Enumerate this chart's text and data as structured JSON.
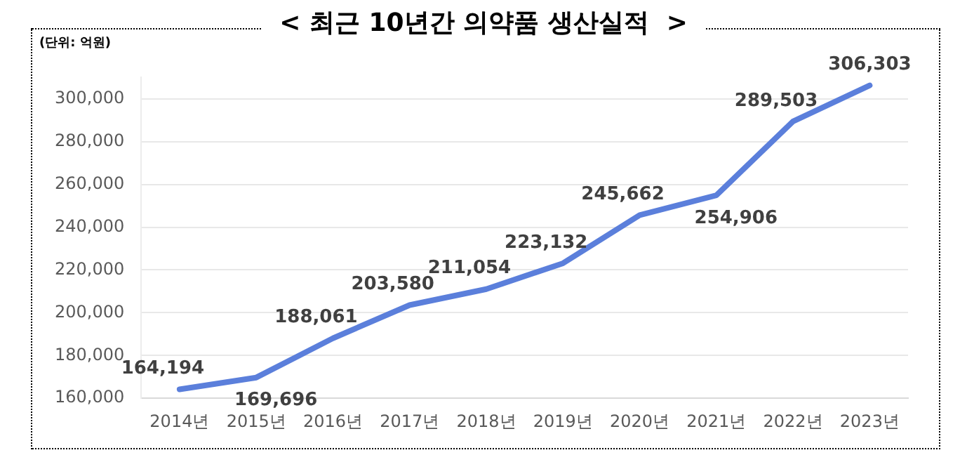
{
  "chart_data": {
    "type": "line",
    "title": "< 최근 10년간 의약품 생산실적  >",
    "annotations": [
      "(단위: 억원)"
    ],
    "categories": [
      "2014년",
      "2015년",
      "2016년",
      "2017년",
      "2018년",
      "2019년",
      "2020년",
      "2021년",
      "2022년",
      "2023년"
    ],
    "series": [
      {
        "color": "#5b7fdb",
        "values": [
          164194,
          169696,
          188061,
          203580,
          211054,
          223132,
          245662,
          254906,
          289503,
          306303
        ],
        "value_labels": [
          "164,194",
          "169,696",
          "188,061",
          "203,580",
          "211,054",
          "223,132",
          "245,662",
          "254,906",
          "289,503",
          "306,303"
        ]
      }
    ],
    "ylim": [
      160000,
      310000
    ],
    "yticks": [
      {
        "value": 160000,
        "label": "160,000"
      },
      {
        "value": 180000,
        "label": "180,000"
      },
      {
        "value": 200000,
        "label": "200,000"
      },
      {
        "value": 220000,
        "label": "220,000"
      },
      {
        "value": 240000,
        "label": "240,000"
      },
      {
        "value": 260000,
        "label": "260,000"
      },
      {
        "value": 280000,
        "label": "280,000"
      },
      {
        "value": 300000,
        "label": "300,000"
      }
    ],
    "grid": "y",
    "legend": false,
    "marker": "none",
    "line_style": "solid"
  }
}
